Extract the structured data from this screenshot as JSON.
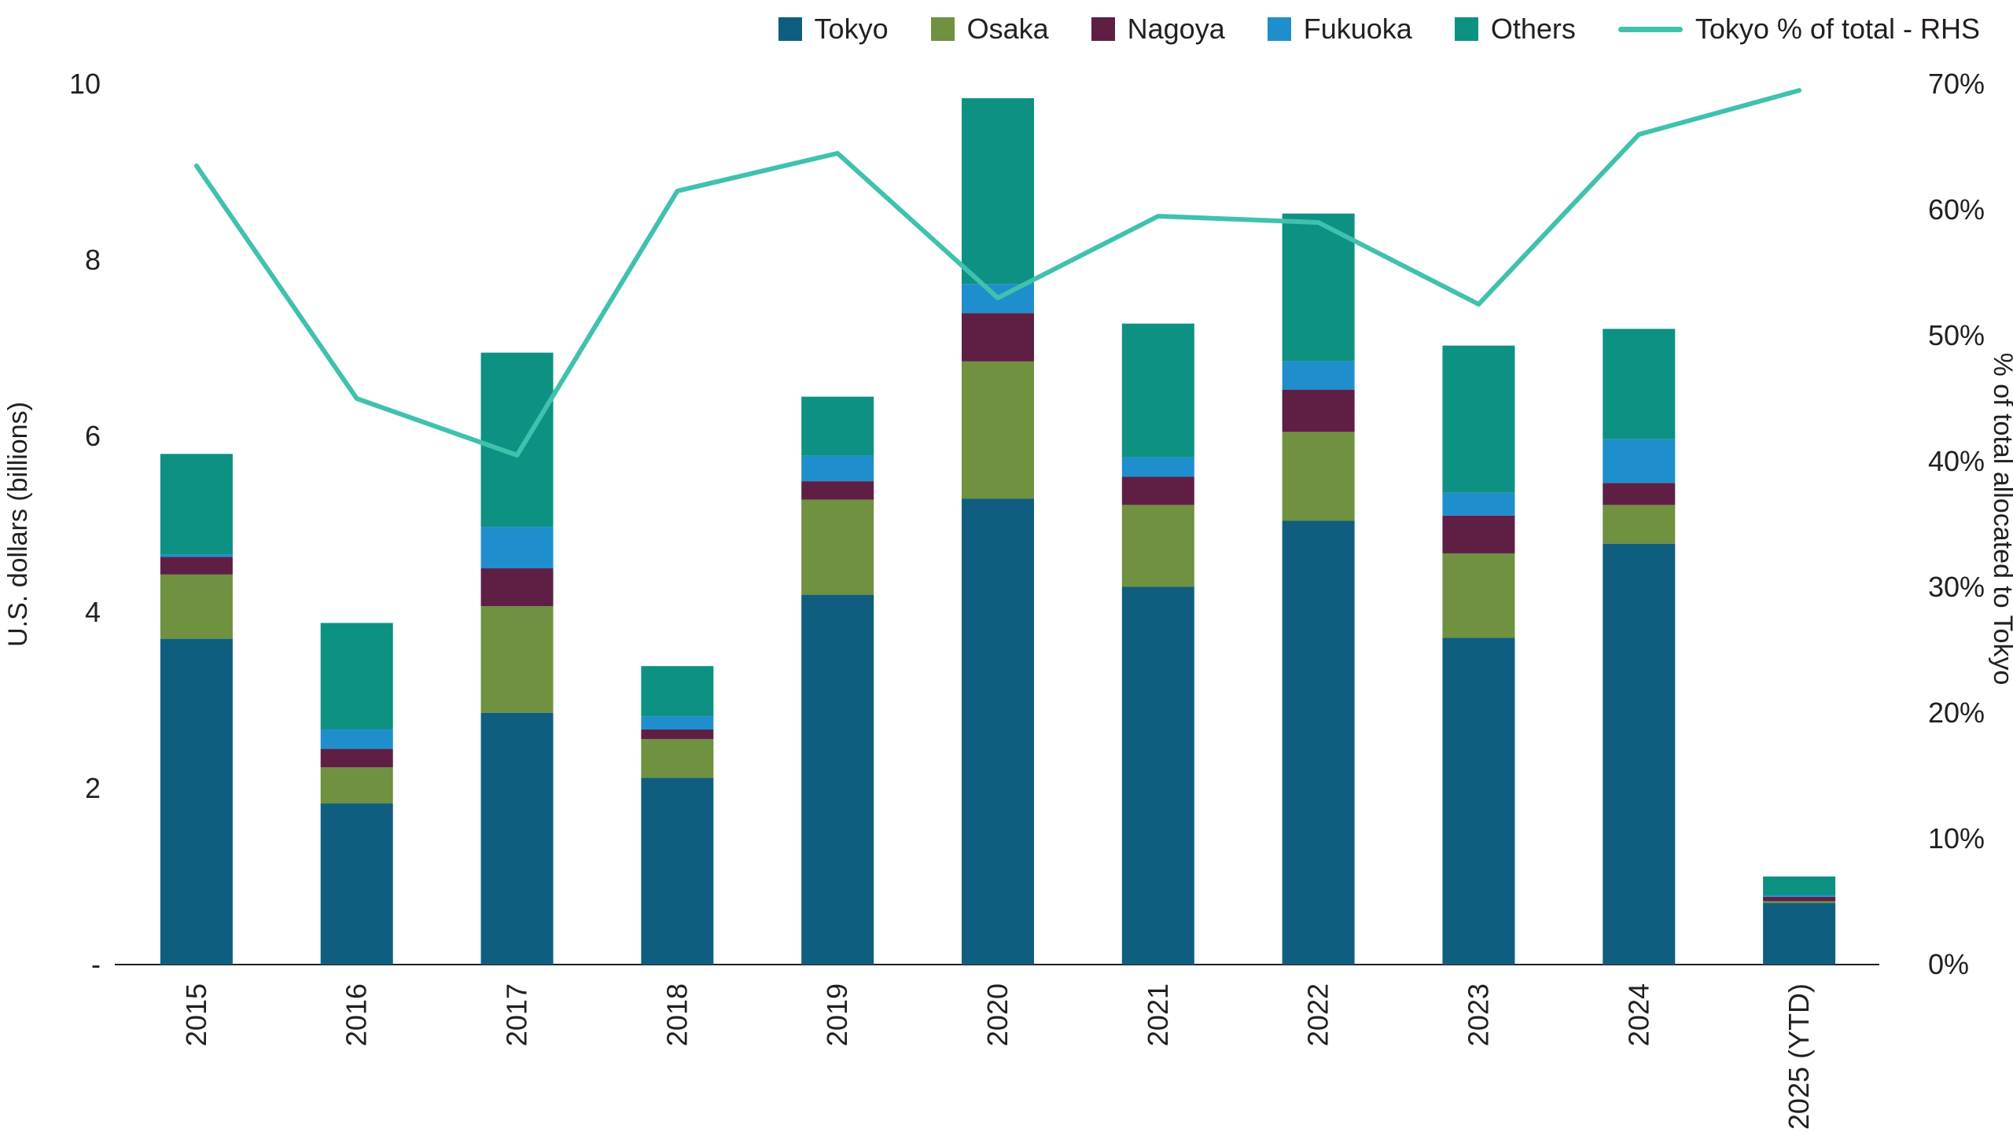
{
  "chart_data": {
    "type": "bar",
    "subtype": "stacked-bar-with-line-overlay",
    "title": "",
    "categories": [
      "2015",
      "2016",
      "2017",
      "2018",
      "2019",
      "2020",
      "2021",
      "2022",
      "2023",
      "2024",
      "2025 (YTD)"
    ],
    "series": [
      {
        "name": "Tokyo",
        "color": "#0f5e80",
        "values": [
          3.7,
          1.83,
          2.86,
          2.12,
          4.2,
          5.29,
          4.29,
          5.04,
          3.71,
          4.78,
          0.7
        ]
      },
      {
        "name": "Osaka",
        "color": "#6f9140",
        "values": [
          0.73,
          0.41,
          1.21,
          0.44,
          1.08,
          1.56,
          0.93,
          1.01,
          0.96,
          0.44,
          0.02
        ]
      },
      {
        "name": "Nagoya",
        "color": "#5f1f45",
        "values": [
          0.2,
          0.21,
          0.43,
          0.11,
          0.21,
          0.55,
          0.32,
          0.48,
          0.43,
          0.25,
          0.05
        ]
      },
      {
        "name": "Fukuoka",
        "color": "#1f8ecd",
        "values": [
          0.03,
          0.22,
          0.47,
          0.15,
          0.29,
          0.33,
          0.22,
          0.32,
          0.26,
          0.5,
          0.02
        ]
      },
      {
        "name": "Others",
        "color": "#0d9182",
        "values": [
          1.14,
          1.21,
          1.98,
          0.57,
          0.67,
          2.11,
          1.52,
          1.68,
          1.67,
          1.25,
          0.21
        ]
      }
    ],
    "line_series": {
      "name": "Tokyo % of total - RHS",
      "color": "#40c1ad",
      "axis": "right",
      "values": [
        63.5,
        45.0,
        40.5,
        61.5,
        64.5,
        53.0,
        59.5,
        59.0,
        52.5,
        66.0,
        69.5
      ]
    },
    "ylabel_left": "U.S. dollars (billions)",
    "ylabel_right": "% of total allocated to Tokyo",
    "xlabel": "",
    "ylim_left": [
      0,
      10
    ],
    "ylim_right": [
      0,
      70
    ],
    "left_ticks": [
      {
        "value": 10,
        "label": "10"
      },
      {
        "value": 8,
        "label": "8"
      },
      {
        "value": 6,
        "label": "6"
      },
      {
        "value": 4,
        "label": "4"
      },
      {
        "value": 2,
        "label": "2"
      },
      {
        "value": 0,
        "label": "-"
      }
    ],
    "right_ticks": [
      {
        "value": 70,
        "label": "70%"
      },
      {
        "value": 60,
        "label": "60%"
      },
      {
        "value": 50,
        "label": "50%"
      },
      {
        "value": 40,
        "label": "40%"
      },
      {
        "value": 30,
        "label": "30%"
      },
      {
        "value": 20,
        "label": "20%"
      },
      {
        "value": 10,
        "label": "10%"
      },
      {
        "value": 0,
        "label": "0%"
      }
    ],
    "legend_position": "top-right",
    "grid": false,
    "axis_color": "#231f20",
    "text_color": "#231f20",
    "background": "#ffffff"
  }
}
